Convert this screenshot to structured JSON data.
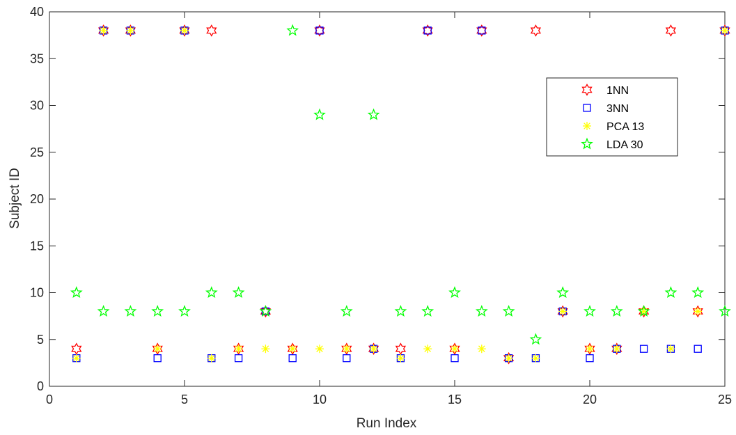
{
  "chart_data": {
    "type": "scatter",
    "title": "",
    "xlabel": "Run Index",
    "ylabel": "Subject ID",
    "xlim": [
      0,
      25
    ],
    "ylim": [
      0,
      40
    ],
    "xticks": [
      0,
      5,
      10,
      15,
      20,
      25
    ],
    "yticks": [
      0,
      5,
      10,
      15,
      20,
      25,
      30,
      35,
      40
    ],
    "grid": false,
    "legend_position": "top-right",
    "x": [
      1,
      2,
      3,
      4,
      5,
      6,
      7,
      8,
      9,
      10,
      11,
      12,
      13,
      14,
      15,
      16,
      17,
      18,
      19,
      20,
      21,
      22,
      23,
      24,
      25
    ],
    "series": [
      {
        "name": "1NN",
        "marker": "hexagram",
        "color": "#ff0000",
        "values": [
          4,
          38,
          38,
          4,
          38,
          38,
          4,
          8,
          4,
          38,
          4,
          4,
          4,
          38,
          4,
          38,
          3,
          38,
          8,
          4,
          4,
          8,
          38,
          8,
          38
        ]
      },
      {
        "name": "3NN",
        "marker": "square",
        "color": "#0000ff",
        "values": [
          3,
          38,
          38,
          3,
          38,
          3,
          3,
          8,
          3,
          38,
          3,
          4,
          3,
          38,
          3,
          38,
          3,
          3,
          8,
          3,
          4,
          4,
          4,
          4,
          38
        ]
      },
      {
        "name": "PCA 13",
        "marker": "asterisk",
        "color": "#ffff00",
        "values": [
          3,
          38,
          38,
          4,
          38,
          3,
          4,
          4,
          4,
          4,
          4,
          4,
          3,
          4,
          4,
          4,
          3,
          3,
          8,
          4,
          4,
          8,
          4,
          8,
          38
        ]
      },
      {
        "name": "LDA 30",
        "marker": "pentagram",
        "color": "#00ff00",
        "values": [
          10,
          8,
          8,
          8,
          8,
          10,
          10,
          8,
          38,
          29,
          8,
          29,
          8,
          8,
          10,
          8,
          8,
          5,
          10,
          8,
          8,
          8,
          10,
          10,
          8
        ]
      }
    ]
  }
}
